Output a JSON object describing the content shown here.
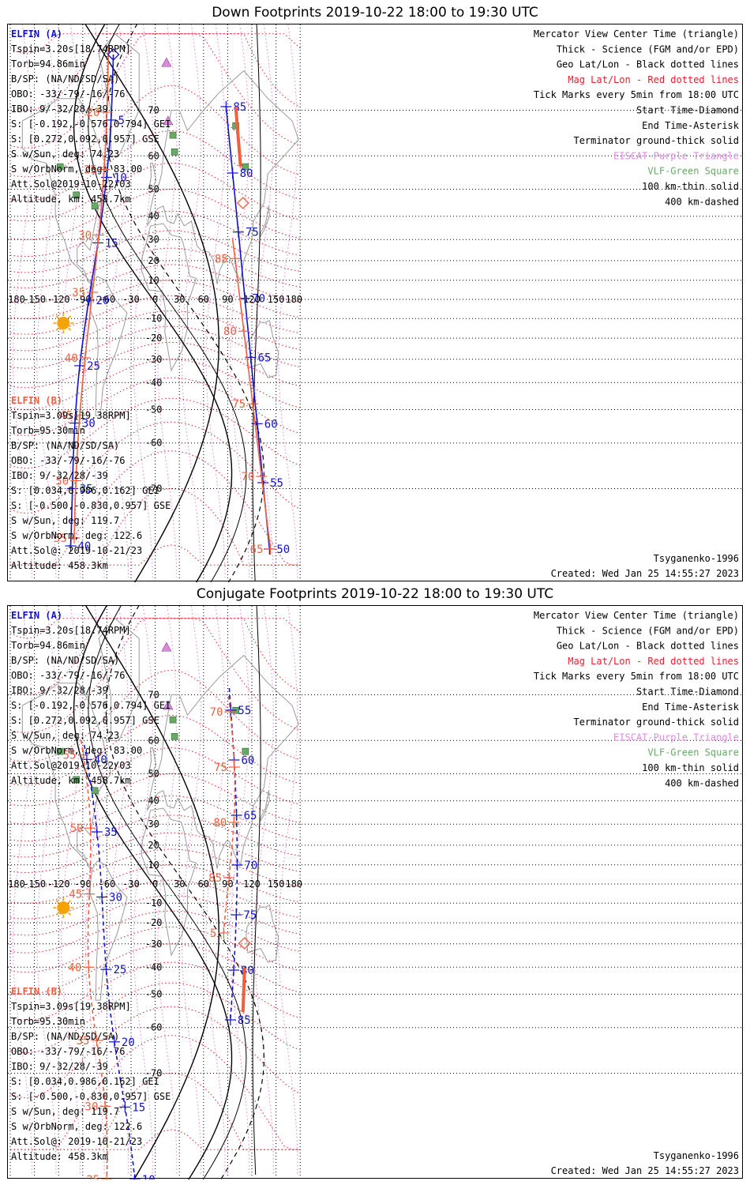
{
  "panels": [
    {
      "title": "Down Footprints 2019-10-22 18:00 to 19:30 UTC",
      "kind": "down"
    },
    {
      "title": "Conjugate Footprints 2019-10-22 18:00 to 19:30 UTC",
      "kind": "conjugate"
    }
  ],
  "info_a": {
    "title": "ELFIN (A)",
    "lines": [
      "Tspin=3.20s[18.74RPM]",
      "Torb=94.86min",
      "B/SP: (NA/ND/SD/SA)",
      "OBO: -33/-79/-16/-76",
      "IBO: 9/-32/28/-39",
      "S: [-0.192,-0.576,0.794] GEI",
      "S: [0.272,0.092,0.957] GSE",
      "S w/Sun, deg: 74.23",
      "S w/OrbNorm, deg: 83.00",
      "Att.Sol@2019-10-22/03",
      "Altitude, km: 458.7km"
    ]
  },
  "info_b": {
    "title": "ELFIN (B)",
    "lines": [
      "Tspin=3.09s[19.38RPM]",
      "Torb=95.30min",
      "B/SP: (NA/ND/SD/SA)",
      "OBO: -33/-79/-16/-76",
      "IBO: 9/-32/28/-39",
      "S: [0.034,0.986,0.162] GEI",
      "S: [-0.500,-0.830,0.957] GSE",
      "S w/Sun, deg: 119.7",
      "S w/OrbNorm, deg: 122.6",
      "Att.Sol@: 2019-10-21/23",
      "Altitude: 458.3km"
    ]
  },
  "legend": {
    "lines": [
      {
        "text": "Mercator View Center Time (triangle)",
        "color": "#000000"
      },
      {
        "text": "Thick - Science (FGM and/or EPD)",
        "color": "#000000"
      },
      {
        "text": "Geo Lat/Lon - Black dotted lines",
        "color": "#000000"
      },
      {
        "text": "Mag Lat/Lon - Red dotted lines",
        "color": "#e8202a"
      },
      {
        "text": "Tick Marks every 5min from 18:00 UTC",
        "color": "#000000"
      },
      {
        "text": "Start Time-Diamond",
        "color": "#000000"
      },
      {
        "text": "End Time-Asterisk",
        "color": "#000000"
      },
      {
        "text": "Terminator ground-thick solid",
        "color": "#000000"
      },
      {
        "text": "EISCAT-Purple Triangle",
        "color": "#dd88dd"
      },
      {
        "text": "VLF-Green Square",
        "color": "#66aa66"
      },
      {
        "text": "100 km-thin solid",
        "color": "#000000"
      },
      {
        "text": "400 km-dashed",
        "color": "#000000"
      }
    ]
  },
  "footer": {
    "model": "Tsyganenko-1996",
    "created": "Created: Wed Jan 25 14:55:27 2023"
  },
  "axes": {
    "lon_ticks": [
      "180",
      "-150",
      "-120",
      "-90",
      "-60",
      "-30",
      "0",
      "30",
      "60",
      "90",
      "120",
      "150",
      "180"
    ],
    "lat_ticks": [
      "70",
      "60",
      "50",
      "40",
      "30",
      "20",
      "10",
      "0",
      "-10",
      "-20",
      "-30",
      "-40",
      "-50",
      "-60",
      "-70"
    ]
  },
  "tracks": {
    "down": {
      "a1_labels": [
        "5",
        "10",
        "15",
        "20",
        "25",
        "30",
        "35",
        "40"
      ],
      "b1_labels": [
        "20",
        "25",
        "30",
        "35",
        "40",
        "45",
        "50",
        "55"
      ],
      "a2_labels": [
        "85",
        "80",
        "75",
        "70",
        "65",
        "60",
        "55",
        "50"
      ],
      "b2_labels": [
        "85",
        "80",
        "75",
        "70",
        "65"
      ]
    },
    "conjugate": {
      "a1_labels": [
        "40",
        "35",
        "30",
        "25",
        "20",
        "15",
        "10"
      ],
      "b1_labels": [
        "55",
        "50",
        "45",
        "40",
        "35",
        "30",
        "25"
      ],
      "a2_labels": [
        "55",
        "60",
        "65",
        "70",
        "75",
        "80",
        "85"
      ],
      "b2_labels": [
        "70",
        "75",
        "80",
        "85",
        "5"
      ]
    }
  },
  "colors": {
    "elfin_a": "#1010d0",
    "elfin_b": "#f06040",
    "geo_grid": "#000000",
    "mag_grid": "#e8202a",
    "coast": "#9a9a9a",
    "sun": "#f5a300",
    "eiscat": "#dd88dd",
    "vlf": "#66aa66"
  }
}
